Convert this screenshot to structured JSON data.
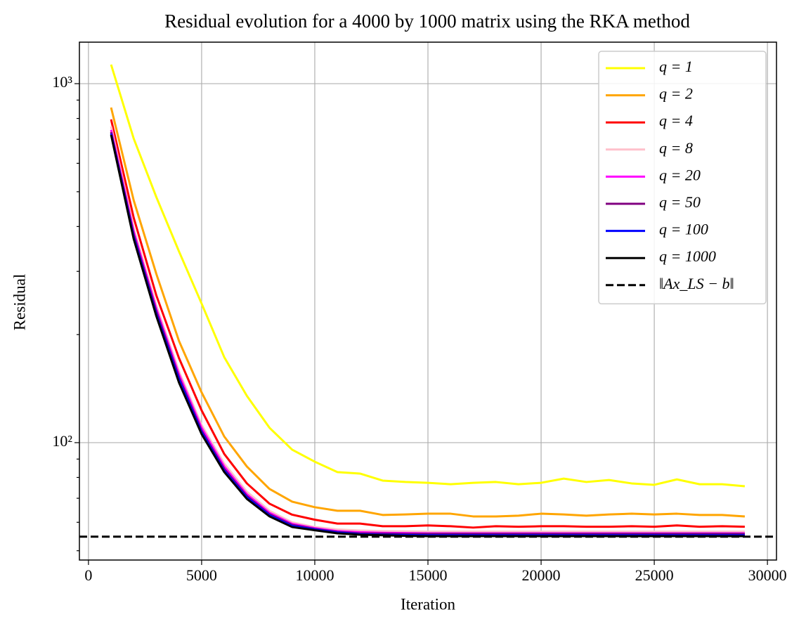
{
  "chart_data": {
    "type": "line",
    "title": "Residual evolution for a 4000 by 1000 matrix using the RKA method",
    "x_label": "Iteration",
    "y_label": "Residual",
    "x": [
      1000,
      2000,
      3000,
      4000,
      5000,
      6000,
      7000,
      8000,
      9000,
      10000,
      11000,
      12000,
      13000,
      14000,
      15000,
      16000,
      17000,
      18000,
      19000,
      20000,
      21000,
      22000,
      23000,
      24000,
      25000,
      26000,
      27000,
      28000,
      29000
    ],
    "series": [
      {
        "name": "q = 1",
        "color": "#ffff00",
        "values": [
          1130,
          703,
          483,
          341,
          244,
          173,
          135,
          110,
          95.6,
          88.5,
          82.8,
          82,
          78.4,
          77.7,
          77.3,
          76.6,
          77.3,
          77.7,
          76.6,
          77.3,
          79.4,
          77.7,
          78.7,
          77,
          76.3,
          79,
          76.6,
          76.6,
          75.6
        ]
      },
      {
        "name": "q = 2",
        "color": "#ffa500",
        "values": [
          858,
          473,
          295,
          192,
          138,
          104,
          85.8,
          74.3,
          68.5,
          66.1,
          64.6,
          64.6,
          62.9,
          63.1,
          63.4,
          63.4,
          62.3,
          62.3,
          62.6,
          63.4,
          63.1,
          62.6,
          63.1,
          63.4,
          63.1,
          63.4,
          62.9,
          62.9,
          62.3
        ]
      },
      {
        "name": "q = 4",
        "color": "#ff0000",
        "values": [
          795,
          423,
          257,
          172,
          123,
          93,
          77,
          67.6,
          63,
          61,
          59.5,
          59.5,
          58.5,
          58.5,
          58.8,
          58.5,
          58,
          58.5,
          58.3,
          58.5,
          58.5,
          58.3,
          58.3,
          58.5,
          58.3,
          58.8,
          58.3,
          58.5,
          58.3
        ]
      },
      {
        "name": "q = 8",
        "color": "#ffc0cb",
        "values": [
          760,
          395,
          241,
          158,
          112,
          87.4,
          73,
          64.6,
          60,
          58.2,
          57.3,
          56.9,
          56.7,
          56.6,
          56.5,
          56.5,
          56.5,
          56.5,
          56.5,
          56.5,
          56.5,
          56.5,
          56.5,
          56.5,
          56.5,
          56.5,
          56.5,
          56.5,
          56.5
        ]
      },
      {
        "name": "q = 20",
        "color": "#ff00ff",
        "values": [
          743,
          387,
          236,
          155,
          110,
          85.8,
          71.8,
          63.8,
          59.4,
          57.8,
          56.7,
          56.3,
          56.1,
          56,
          55.9,
          55.9,
          55.9,
          55.9,
          55.9,
          55.9,
          55.9,
          55.9,
          55.9,
          55.9,
          55.9,
          55.9,
          55.9,
          55.9,
          55.9
        ]
      },
      {
        "name": "q = 50",
        "color": "#800080",
        "values": [
          733,
          380,
          232,
          152,
          108,
          84.5,
          71,
          63.2,
          59,
          57.5,
          56.4,
          55.9,
          55.8,
          55.7,
          55.7,
          55.7,
          55.7,
          55.7,
          55.7,
          55.7,
          55.7,
          55.7,
          55.7,
          55.7,
          55.7,
          55.7,
          55.7,
          55.7,
          55.7
        ]
      },
      {
        "name": "q = 100",
        "color": "#0000ff",
        "values": [
          726,
          374,
          228,
          150,
          107,
          83.6,
          70.4,
          62.8,
          58.6,
          57.3,
          56.2,
          55.6,
          55.4,
          55.3,
          55.2,
          55.2,
          55.2,
          55.2,
          55.2,
          55.2,
          55.2,
          55.2,
          55.2,
          55.2,
          55.2,
          55.2,
          55.2,
          55.2,
          55.2
        ]
      },
      {
        "name": "q = 1000",
        "color": "#000000",
        "values": [
          720,
          369,
          225,
          147,
          105.6,
          82.8,
          69.7,
          62.3,
          58.2,
          57,
          55.9,
          55.4,
          55.2,
          55,
          54.9,
          54.9,
          54.9,
          54.9,
          54.9,
          54.9,
          54.9,
          54.9,
          54.9,
          54.9,
          54.9,
          54.9,
          54.9,
          54.9,
          54.9
        ]
      }
    ],
    "reference": {
      "name": "‖Ax_LS − b‖",
      "value": 54.7,
      "color": "#000000",
      "dashed": true
    },
    "xlim": [
      -400,
      30400
    ],
    "xticks": [
      0,
      5000,
      10000,
      15000,
      20000,
      25000,
      30000
    ],
    "ylim": [
      47.1,
      1305
    ],
    "log_y": true,
    "yticks": [
      {
        "value": 100,
        "label": "10²"
      },
      {
        "value": 1000,
        "label": "10³"
      }
    ],
    "yminor_ticks": [
      50,
      60,
      70,
      80,
      90,
      200,
      300,
      400,
      500,
      600,
      700,
      800,
      900
    ],
    "grid": true,
    "legend": "upper right"
  }
}
